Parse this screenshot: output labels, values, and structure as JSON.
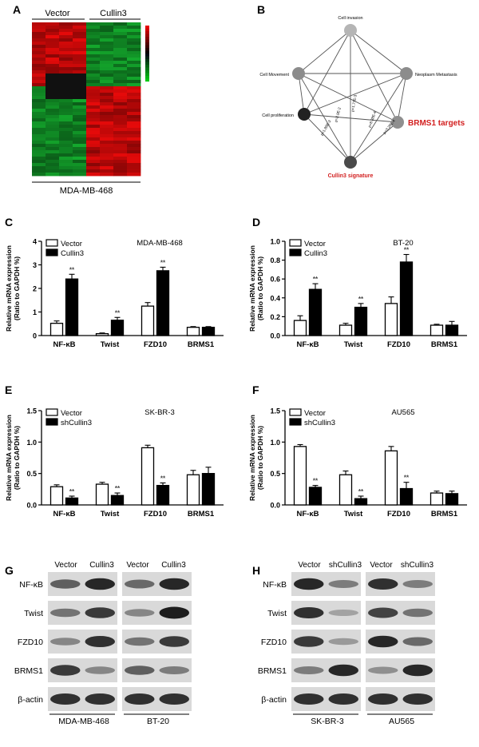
{
  "panel_letters": {
    "A": "A",
    "B": "B",
    "C": "C",
    "D": "D",
    "E": "E",
    "F": "F",
    "G": "G",
    "H": "H"
  },
  "heatmap": {
    "groups": [
      "Vector",
      "Cullin3"
    ],
    "cell_line": "MDA-MB-468",
    "colors": {
      "red": "#d40000",
      "green": "#00a32a",
      "black": "#111111"
    }
  },
  "network": {
    "nodes": [
      {
        "label": "Cell invasion",
        "color": "#b5b5b5"
      },
      {
        "label": "Neoplasm Metastasis",
        "color": "#8c8c8c"
      },
      {
        "label": "BRMS1 targets",
        "color": "#8f8f8f",
        "highlight": true
      },
      {
        "label": "Cullin3 signature",
        "color": "#4a4a4a",
        "highlight": true
      },
      {
        "label": "Cell proliferation",
        "color": "#222222"
      },
      {
        "label": "Cell Movement",
        "color": "#8c8c8c"
      }
    ],
    "edge_labels": [
      "p=1.77E-3",
      "p=8.38E-4",
      "p=3.28E-4",
      "p=1.88E-3",
      "p=2.9E-2"
    ],
    "highlight_color": "#d21f1f"
  },
  "common": {
    "ylabel_1": "Relative mRNA expression",
    "ylabel_2": "(Ratio to GAPDH %)",
    "sig": "**"
  },
  "chart_data": [
    {
      "id": "C",
      "type": "bar",
      "title": "MDA-MB-468",
      "categories": [
        "NF-κB",
        "Twist",
        "FZD10",
        "BRMS1"
      ],
      "ylim": [
        0,
        4
      ],
      "ticks": [
        "0",
        "1",
        "2",
        "3",
        "4"
      ],
      "series": [
        {
          "name": "Vector",
          "values": [
            0.52,
            0.08,
            1.25,
            0.35
          ],
          "errors": [
            0.1,
            0.03,
            0.15,
            0.03
          ]
        },
        {
          "name": "Cullin3",
          "values": [
            2.4,
            0.65,
            2.75,
            0.35
          ],
          "errors": [
            0.2,
            0.12,
            0.15,
            0.03
          ]
        }
      ],
      "sig": [
        true,
        true,
        true,
        false
      ]
    },
    {
      "id": "D",
      "type": "bar",
      "title": "BT-20",
      "categories": [
        "NF-κB",
        "Twist",
        "FZD10",
        "BRMS1"
      ],
      "ylim": [
        0,
        1.0
      ],
      "ticks": [
        "0.0",
        "0.2",
        "0.4",
        "0.6",
        "0.8",
        "1.0"
      ],
      "series": [
        {
          "name": "Vector",
          "values": [
            0.16,
            0.11,
            0.34,
            0.11
          ],
          "errors": [
            0.05,
            0.02,
            0.07,
            0.01
          ]
        },
        {
          "name": "Cullin3",
          "values": [
            0.49,
            0.3,
            0.78,
            0.11
          ],
          "errors": [
            0.06,
            0.04,
            0.08,
            0.04
          ]
        }
      ],
      "sig": [
        true,
        true,
        true,
        false
      ]
    },
    {
      "id": "E",
      "type": "bar",
      "title": "SK-BR-3",
      "categories": [
        "NF-κB",
        "Twist",
        "FZD10",
        "BRMS1"
      ],
      "ylim": [
        0,
        1.5
      ],
      "ticks": [
        "0.0",
        "0.5",
        "1.0",
        "1.5"
      ],
      "series": [
        {
          "name": "Vector",
          "values": [
            0.29,
            0.33,
            0.91,
            0.48
          ],
          "errors": [
            0.03,
            0.03,
            0.04,
            0.07
          ]
        },
        {
          "name": "shCullin3",
          "values": [
            0.11,
            0.15,
            0.31,
            0.5
          ],
          "errors": [
            0.03,
            0.04,
            0.04,
            0.1
          ]
        }
      ],
      "sig": [
        true,
        true,
        true,
        false
      ]
    },
    {
      "id": "F",
      "type": "bar",
      "title": "AU565",
      "categories": [
        "NF-κB",
        "Twist",
        "FZD10",
        "BRMS1"
      ],
      "ylim": [
        0,
        1.5
      ],
      "ticks": [
        "0.0",
        "0.5",
        "1.0",
        "1.5"
      ],
      "series": [
        {
          "name": "Vector",
          "values": [
            0.93,
            0.48,
            0.86,
            0.19
          ],
          "errors": [
            0.03,
            0.06,
            0.07,
            0.03
          ]
        },
        {
          "name": "shCullin3",
          "values": [
            0.28,
            0.1,
            0.26,
            0.18
          ],
          "errors": [
            0.03,
            0.04,
            0.1,
            0.04
          ]
        }
      ],
      "sig": [
        true,
        true,
        true,
        false
      ]
    }
  ],
  "blots": {
    "G": {
      "lanes": [
        "Vector",
        "Cullin3",
        "Vector",
        "Cullin3"
      ],
      "proteins": [
        "NF-κB",
        "Twist",
        "FZD10",
        "BRMS1",
        "β-actin"
      ],
      "groups": [
        "MDA-MB-468",
        "BT-20"
      ]
    },
    "H": {
      "lanes": [
        "Vector",
        "shCullin3",
        "Vector",
        "shCullin3"
      ],
      "proteins": [
        "NF-κB",
        "Twist",
        "FZD10",
        "BRMS1",
        "β-actin"
      ],
      "groups": [
        "SK-BR-3",
        "AU565"
      ]
    }
  }
}
